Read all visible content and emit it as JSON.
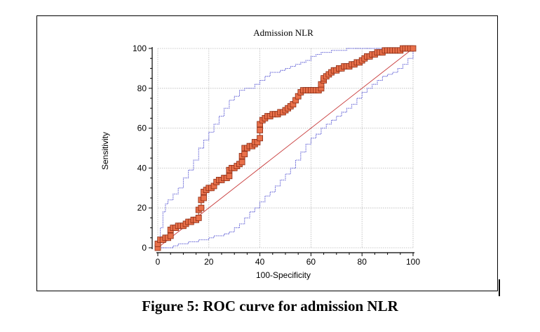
{
  "caption": "Figure 5: ROC curve for admission NLR",
  "chart_data": {
    "type": "line",
    "title": "Admission NLR",
    "xlabel": "100-Specificity",
    "ylabel": "Sensitivity",
    "xlim": [
      0,
      100
    ],
    "ylim": [
      0,
      100
    ],
    "xticks": [
      0,
      20,
      40,
      60,
      80,
      100
    ],
    "yticks": [
      0,
      20,
      40,
      60,
      80,
      100
    ],
    "grid": true,
    "colors": {
      "roc_fill": "#e8704a",
      "roc_edge": "#8b2a12",
      "ci_line": "#4a4ad0",
      "diagonal": "#c83a3a",
      "grid": "#b8b8b8"
    },
    "series": [
      {
        "role": "roc",
        "x": [
          0,
          0,
          1,
          2,
          3,
          4,
          5,
          5,
          6,
          7,
          8,
          9,
          10,
          11,
          12,
          13,
          14,
          15,
          16,
          16,
          17,
          17,
          18,
          18,
          19,
          20,
          21,
          22,
          23,
          24,
          25,
          26,
          27,
          28,
          28,
          29,
          30,
          31,
          32,
          33,
          33,
          34,
          34,
          35,
          36,
          37,
          38,
          38,
          39,
          40,
          40,
          40,
          41,
          42,
          43,
          44,
          45,
          46,
          47,
          48,
          49,
          50,
          51,
          52,
          53,
          54,
          55,
          56,
          57,
          58,
          59,
          60,
          61,
          62,
          63,
          64,
          64,
          65,
          65,
          66,
          67,
          68,
          69,
          70,
          71,
          72,
          73,
          74,
          75,
          76,
          77,
          78,
          79,
          80,
          81,
          82,
          83,
          84,
          85,
          86,
          87,
          88,
          89,
          90,
          91,
          92,
          93,
          94,
          95,
          96,
          97,
          98,
          99,
          100
        ],
        "y": [
          0,
          2,
          4,
          4,
          5,
          5,
          6,
          9,
          10,
          10,
          11,
          11,
          11,
          12,
          13,
          13,
          14,
          14,
          15,
          19,
          20,
          24,
          25,
          28,
          29,
          30,
          30,
          31,
          33,
          34,
          34,
          35,
          35,
          36,
          39,
          40,
          40,
          41,
          42,
          43,
          46,
          47,
          50,
          50,
          51,
          51,
          52,
          53,
          53,
          55,
          59,
          62,
          64,
          65,
          66,
          66,
          67,
          67,
          67,
          68,
          68,
          69,
          70,
          71,
          72,
          74,
          76,
          78,
          79,
          79,
          79,
          79,
          79,
          79,
          79,
          80,
          82,
          84,
          85,
          86,
          87,
          88,
          89,
          89,
          90,
          90,
          91,
          91,
          91,
          92,
          92,
          93,
          93,
          94,
          95,
          96,
          96,
          97,
          97,
          98,
          98,
          98,
          99,
          99,
          99,
          99,
          99,
          99,
          99,
          100,
          100,
          100,
          100,
          100
        ]
      },
      {
        "role": "ci-upper",
        "x": [
          0,
          1,
          2,
          3,
          4,
          6,
          8,
          10,
          12,
          14,
          16,
          18,
          20,
          22,
          24,
          26,
          28,
          30,
          32,
          34,
          36,
          38,
          40,
          42,
          44,
          46,
          48,
          50,
          52,
          54,
          56,
          58,
          60,
          62,
          64,
          66,
          68,
          70,
          72,
          74,
          76,
          78,
          80,
          82,
          84,
          86,
          88,
          90,
          92,
          94,
          96,
          98,
          100
        ],
        "y": [
          0,
          10,
          18,
          22,
          24,
          27,
          30,
          35,
          39,
          44,
          50,
          54,
          58,
          62,
          66,
          70,
          74,
          76,
          79,
          80,
          80,
          82,
          84,
          86,
          88,
          88,
          89,
          90,
          91,
          92,
          93,
          94,
          96,
          97,
          98,
          98,
          99,
          99,
          99,
          100,
          100,
          100,
          100,
          100,
          100,
          100,
          100,
          100,
          100,
          100,
          100,
          100,
          100
        ]
      },
      {
        "role": "ci-lower",
        "x": [
          0,
          2,
          4,
          6,
          8,
          10,
          12,
          14,
          16,
          18,
          20,
          22,
          24,
          26,
          28,
          30,
          32,
          34,
          36,
          38,
          40,
          42,
          44,
          46,
          48,
          50,
          52,
          54,
          56,
          58,
          60,
          62,
          64,
          66,
          68,
          70,
          72,
          74,
          76,
          78,
          80,
          82,
          84,
          86,
          88,
          90,
          92,
          94,
          96,
          98,
          100
        ],
        "y": [
          0,
          0,
          0,
          1,
          2,
          2,
          3,
          3,
          4,
          4,
          5,
          6,
          6,
          7,
          8,
          10,
          12,
          15,
          18,
          20,
          23,
          26,
          28,
          31,
          34,
          37,
          40,
          44,
          48,
          52,
          55,
          57,
          60,
          62,
          64,
          66,
          68,
          70,
          72,
          75,
          78,
          80,
          82,
          84,
          86,
          87,
          88,
          90,
          92,
          95,
          100
        ]
      },
      {
        "role": "reference",
        "x": [
          0,
          100
        ],
        "y": [
          0,
          100
        ]
      }
    ]
  }
}
